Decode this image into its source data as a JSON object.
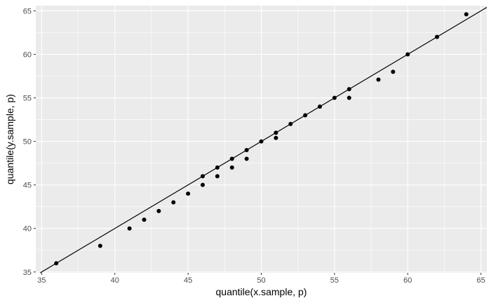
{
  "chart_data": {
    "type": "scatter",
    "title": "",
    "xlabel": "quantile(x.sample, p)",
    "ylabel": "quantile(y.sample, p)",
    "xlim": [
      34.6,
      65.4
    ],
    "ylim": [
      34.9,
      65.6
    ],
    "x_ticks": [
      35,
      40,
      45,
      50,
      55,
      60,
      65
    ],
    "y_ticks": [
      35,
      40,
      45,
      50,
      55,
      60,
      65
    ],
    "grid": true,
    "reference_line": {
      "slope": 1,
      "intercept": 0
    },
    "points": [
      {
        "x": 36,
        "y": 36
      },
      {
        "x": 39,
        "y": 38
      },
      {
        "x": 41,
        "y": 40
      },
      {
        "x": 42,
        "y": 41
      },
      {
        "x": 43,
        "y": 42
      },
      {
        "x": 44,
        "y": 43
      },
      {
        "x": 45,
        "y": 44
      },
      {
        "x": 46,
        "y": 45
      },
      {
        "x": 46,
        "y": 46
      },
      {
        "x": 47,
        "y": 46
      },
      {
        "x": 47,
        "y": 47
      },
      {
        "x": 48,
        "y": 47
      },
      {
        "x": 48,
        "y": 48
      },
      {
        "x": 49,
        "y": 48
      },
      {
        "x": 49,
        "y": 49
      },
      {
        "x": 50,
        "y": 50
      },
      {
        "x": 51,
        "y": 50.4
      },
      {
        "x": 51,
        "y": 51
      },
      {
        "x": 52,
        "y": 52
      },
      {
        "x": 53,
        "y": 53
      },
      {
        "x": 54,
        "y": 54
      },
      {
        "x": 55,
        "y": 55
      },
      {
        "x": 56,
        "y": 55
      },
      {
        "x": 56,
        "y": 56
      },
      {
        "x": 58,
        "y": 57.1
      },
      {
        "x": 59,
        "y": 58
      },
      {
        "x": 60,
        "y": 60
      },
      {
        "x": 62,
        "y": 62
      },
      {
        "x": 64,
        "y": 64.6
      }
    ],
    "colors": {
      "panel": "#ebebeb",
      "grid_major": "#ffffff",
      "point": "#000000",
      "line": "#000000"
    }
  }
}
